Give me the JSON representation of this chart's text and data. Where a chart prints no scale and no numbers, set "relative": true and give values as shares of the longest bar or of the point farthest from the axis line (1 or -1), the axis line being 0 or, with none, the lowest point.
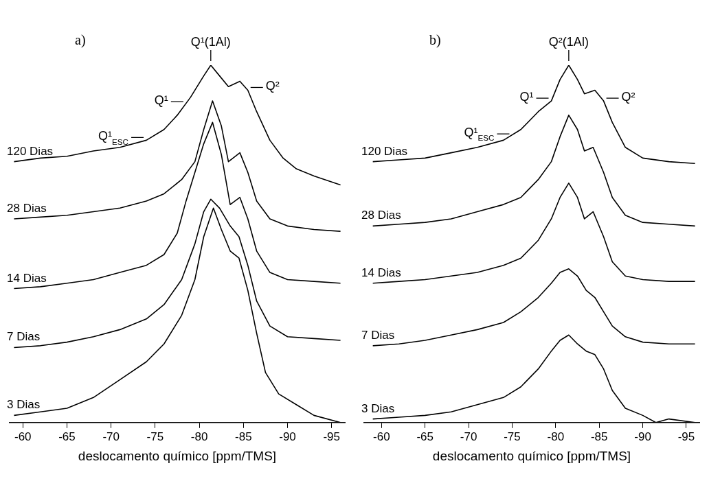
{
  "chart_data": [
    {
      "type": "line",
      "relative": true,
      "xlabel": "deslocamento químico [ppm/TMS]",
      "xlim": [
        -58.5,
        -96.5
      ],
      "xticks": [
        -60,
        -65,
        -70,
        -75,
        -80,
        -85,
        -90,
        -95
      ],
      "tick_labels": "x",
      "grid": false,
      "annotations": [
        "a)",
        {
          "text": "Q¹(1Al)",
          "x": -81.3,
          "y": 1.0
        },
        {
          "text": "Q¹",
          "x": -78.5,
          "y": 0.89
        },
        {
          "text": "Q²",
          "x": -85.5,
          "y": 0.93
        },
        {
          "text": "Q¹$_{ESC}$",
          "x": -74,
          "y": 0.79
        }
      ],
      "series": [
        {
          "name": "120 Dias",
          "color": "#000000",
          "x": [
            -59,
            -62,
            -65,
            -68,
            -71,
            -74,
            -76,
            -77.5,
            -79,
            -80.5,
            -81.3,
            -82.3,
            -83.3,
            -84.6,
            -85.5,
            -86.5,
            -88,
            -89.5,
            -91,
            -93,
            -96
          ],
          "values": [
            0.73,
            0.74,
            0.745,
            0.76,
            0.77,
            0.79,
            0.82,
            0.86,
            0.91,
            0.97,
            1.0,
            0.97,
            0.94,
            0.955,
            0.93,
            0.87,
            0.79,
            0.74,
            0.71,
            0.69,
            0.665
          ]
        },
        {
          "name": "28 Dias",
          "color": "#000000",
          "x": [
            -59,
            -62,
            -65,
            -68,
            -71,
            -74,
            -76,
            -78,
            -79.5,
            -80.5,
            -81.5,
            -82.5,
            -83.3,
            -84.6,
            -85.5,
            -86.5,
            -88,
            -90,
            -93,
            -96
          ],
          "values": [
            0.57,
            0.575,
            0.58,
            0.59,
            0.6,
            0.62,
            0.64,
            0.68,
            0.73,
            0.82,
            0.9,
            0.83,
            0.73,
            0.755,
            0.7,
            0.62,
            0.57,
            0.55,
            0.54,
            0.535
          ]
        },
        {
          "name": "14 Dias",
          "color": "#000000",
          "x": [
            -59,
            -62,
            -65,
            -68,
            -71,
            -74,
            -76,
            -77.5,
            -78.5,
            -79.5,
            -80.5,
            -81.5,
            -82.5,
            -83.5,
            -84.6,
            -85.5,
            -86.5,
            -88,
            -90,
            -93,
            -96
          ],
          "values": [
            0.375,
            0.38,
            0.39,
            0.4,
            0.42,
            0.44,
            0.47,
            0.53,
            0.62,
            0.7,
            0.78,
            0.84,
            0.75,
            0.61,
            0.63,
            0.57,
            0.48,
            0.42,
            0.4,
            0.395,
            0.39
          ]
        },
        {
          "name": "7 Dias",
          "color": "#000000",
          "x": [
            -59,
            -62,
            -65,
            -68,
            -71,
            -74,
            -76,
            -78,
            -79.5,
            -80.5,
            -81.3,
            -82.3,
            -83.5,
            -84.5,
            -85.5,
            -86.5,
            -88,
            -90,
            -93,
            -96
          ],
          "values": [
            0.21,
            0.215,
            0.225,
            0.24,
            0.26,
            0.29,
            0.33,
            0.4,
            0.5,
            0.59,
            0.625,
            0.6,
            0.55,
            0.52,
            0.44,
            0.34,
            0.27,
            0.24,
            0.235,
            0.23
          ]
        },
        {
          "name": "3 Dias",
          "color": "#000000",
          "x": [
            -59,
            -62,
            -65,
            -68,
            -71,
            -74,
            -76,
            -78,
            -79.5,
            -80.5,
            -81.6,
            -82.5,
            -83.5,
            -84.5,
            -85.5,
            -86.5,
            -87.5,
            -89,
            -91,
            -93,
            -96
          ],
          "values": [
            0.02,
            0.03,
            0.04,
            0.07,
            0.12,
            0.17,
            0.22,
            0.3,
            0.4,
            0.52,
            0.6,
            0.54,
            0.48,
            0.46,
            0.37,
            0.25,
            0.14,
            0.08,
            0.05,
            0.02,
            0
          ]
        }
      ]
    },
    {
      "type": "line",
      "relative": true,
      "xlabel": "deslocamento químico [ppm/TMS]",
      "xlim": [
        -58,
        -96.5
      ],
      "xticks": [
        -60,
        -65,
        -70,
        -75,
        -80,
        -85,
        -90,
        -95
      ],
      "tick_labels": "x",
      "grid": false,
      "annotations": [
        "b)",
        {
          "text": "Q²(1Al)",
          "x": -81.5,
          "y": 1.0
        },
        {
          "text": "Q¹",
          "x": -79.5,
          "y": 0.9
        },
        {
          "text": "Q²",
          "x": -85.5,
          "y": 0.9
        },
        {
          "text": "Q¹$_{ESC}$",
          "x": -75,
          "y": 0.8
        }
      ],
      "series": [
        {
          "name": "120 Dias",
          "color": "#000000",
          "x": [
            -59,
            -62,
            -65,
            -68,
            -71,
            -74,
            -76,
            -78,
            -79.5,
            -80.5,
            -81.5,
            -82.5,
            -83.3,
            -84.5,
            -85.5,
            -86.5,
            -88,
            -90,
            -93,
            -96
          ],
          "values": [
            0.73,
            0.735,
            0.74,
            0.755,
            0.77,
            0.79,
            0.82,
            0.87,
            0.9,
            0.96,
            1.0,
            0.96,
            0.92,
            0.93,
            0.9,
            0.84,
            0.77,
            0.74,
            0.73,
            0.725
          ]
        },
        {
          "name": "28 Dias",
          "color": "#000000",
          "x": [
            -59,
            -62,
            -65,
            -68,
            -71,
            -74,
            -76,
            -78,
            -79.5,
            -80.5,
            -81.5,
            -82.5,
            -83.3,
            -84.3,
            -85.5,
            -86.5,
            -88,
            -90,
            -93,
            -96
          ],
          "values": [
            0.55,
            0.555,
            0.56,
            0.57,
            0.59,
            0.61,
            0.63,
            0.68,
            0.73,
            0.8,
            0.86,
            0.82,
            0.76,
            0.77,
            0.7,
            0.63,
            0.58,
            0.56,
            0.555,
            0.55
          ]
        },
        {
          "name": "14 Dias",
          "color": "#000000",
          "x": [
            -59,
            -62,
            -65,
            -68,
            -71,
            -74,
            -76,
            -78,
            -79.5,
            -80.5,
            -81.5,
            -82.5,
            -83.3,
            -84.3,
            -85.5,
            -86.5,
            -88,
            -90,
            -93,
            -96
          ],
          "values": [
            0.39,
            0.395,
            0.4,
            0.41,
            0.42,
            0.44,
            0.46,
            0.51,
            0.57,
            0.63,
            0.67,
            0.63,
            0.57,
            0.59,
            0.52,
            0.45,
            0.41,
            0.4,
            0.395,
            0.395
          ]
        },
        {
          "name": "7 Dias",
          "color": "#000000",
          "x": [
            -59,
            -62,
            -65,
            -68,
            -71,
            -74,
            -76,
            -78,
            -79.5,
            -80.5,
            -81.5,
            -82.5,
            -83.5,
            -84.5,
            -85.5,
            -86.5,
            -88,
            -90,
            -93,
            -96
          ],
          "values": [
            0.215,
            0.22,
            0.23,
            0.245,
            0.26,
            0.28,
            0.31,
            0.35,
            0.39,
            0.42,
            0.43,
            0.41,
            0.37,
            0.35,
            0.31,
            0.27,
            0.24,
            0.225,
            0.22,
            0.22
          ]
        },
        {
          "name": "3 Dias",
          "color": "#000000",
          "x": [
            -59,
            -62,
            -65,
            -68,
            -71,
            -74,
            -76,
            -78,
            -79.5,
            -80.5,
            -81.5,
            -82.5,
            -83.5,
            -84.5,
            -85.5,
            -86.5,
            -88,
            -90,
            -91.5,
            -93,
            -96
          ],
          "values": [
            0.01,
            0.015,
            0.02,
            0.03,
            0.05,
            0.07,
            0.1,
            0.15,
            0.2,
            0.23,
            0.245,
            0.22,
            0.2,
            0.19,
            0.15,
            0.09,
            0.04,
            0.02,
            0,
            0.01,
            0
          ]
        }
      ]
    }
  ]
}
